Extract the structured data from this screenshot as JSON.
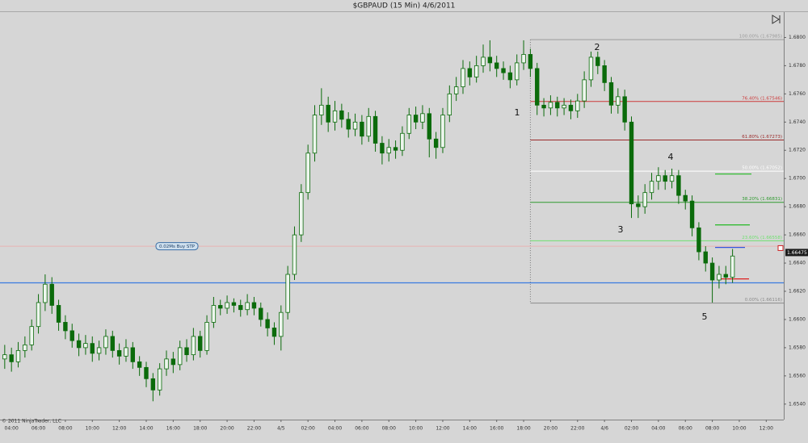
{
  "chart_data": {
    "type": "candlestick",
    "title": "$GBPAUD (15 Min)  4/6/2011",
    "copyright": "© 2011 NinjaTrader, LLC",
    "colors": {
      "up": "#eef6ee",
      "down": "#0b6b0b",
      "outline": "#0b6b0b"
    },
    "x": [
      0,
      1,
      2,
      3,
      4,
      5,
      6,
      7,
      8,
      9,
      10,
      11,
      12,
      13,
      14,
      15,
      16,
      17,
      18,
      19,
      20,
      21,
      22,
      23,
      24,
      25,
      26,
      27,
      28,
      29,
      30,
      31,
      32,
      33,
      34,
      35,
      36,
      37,
      38,
      39,
      40,
      41,
      42,
      43,
      44,
      45,
      46,
      47,
      48,
      49,
      50,
      51,
      52,
      53,
      54,
      55,
      56,
      57,
      58,
      59,
      60,
      61,
      62,
      63,
      64,
      65,
      66,
      67,
      68,
      69,
      70,
      71,
      72,
      73,
      74,
      75,
      76,
      77,
      78,
      79,
      80,
      81,
      82,
      83,
      84,
      85,
      86,
      87,
      88,
      89,
      90,
      91,
      92,
      93,
      94,
      95,
      96,
      97,
      98,
      99,
      100,
      101,
      102,
      103,
      104,
      105,
      106,
      107,
      108
    ],
    "open": [
      1.6572,
      1.6575,
      1.657,
      1.6578,
      1.6582,
      1.6595,
      1.6612,
      1.6625,
      1.661,
      1.6598,
      1.6592,
      1.6585,
      1.658,
      1.6583,
      1.6576,
      1.658,
      1.6588,
      1.6578,
      1.6574,
      1.658,
      1.657,
      1.6566,
      1.6558,
      1.655,
      1.6565,
      1.6572,
      1.6568,
      1.658,
      1.6575,
      1.6588,
      1.6578,
      1.6598,
      1.661,
      1.6608,
      1.6612,
      1.661,
      1.6607,
      1.6612,
      1.6608,
      1.66,
      1.6594,
      1.6588,
      1.6605,
      1.6632,
      1.666,
      1.669,
      1.6718,
      1.6745,
      1.6752,
      1.674,
      1.6748,
      1.6742,
      1.6735,
      1.674,
      1.673,
      1.6744,
      1.6725,
      1.6718,
      1.6722,
      1.672,
      1.6732,
      1.6745,
      1.674,
      1.6746,
      1.6728,
      1.6722,
      1.6745,
      1.676,
      1.6765,
      1.6778,
      1.6772,
      1.678,
      1.6786,
      1.6782,
      1.6778,
      1.6775,
      1.677,
      1.6782,
      1.6788,
      1.6778,
      1.6752,
      1.675,
      1.6754,
      1.675,
      1.6752,
      1.6748,
      1.6755,
      1.677,
      1.6786,
      1.678,
      1.6768,
      1.6752,
      1.6758,
      1.674,
      1.6682,
      1.668,
      1.669,
      1.6698,
      1.6702,
      1.6698,
      1.6702,
      1.6688,
      1.6684,
      1.6665,
      1.6648,
      1.664,
      1.6628,
      1.6632,
      1.663
    ],
    "high": [
      1.6582,
      1.658,
      1.6584,
      1.6588,
      1.66,
      1.6618,
      1.6632,
      1.663,
      1.6614,
      1.6603,
      1.6597,
      1.659,
      1.6589,
      1.6588,
      1.6585,
      1.6593,
      1.6592,
      1.6583,
      1.6586,
      1.6584,
      1.6574,
      1.657,
      1.6562,
      1.6569,
      1.6578,
      1.6577,
      1.6585,
      1.6586,
      1.6594,
      1.6592,
      1.6603,
      1.6616,
      1.6614,
      1.6617,
      1.6615,
      1.6614,
      1.6618,
      1.6616,
      1.6612,
      1.6605,
      1.6598,
      1.661,
      1.6638,
      1.6666,
      1.6696,
      1.6724,
      1.6752,
      1.6764,
      1.6758,
      1.6755,
      1.6753,
      1.6747,
      1.6746,
      1.6745,
      1.675,
      1.6748,
      1.673,
      1.6728,
      1.6727,
      1.6737,
      1.675,
      1.6751,
      1.6752,
      1.675,
      1.6733,
      1.675,
      1.6766,
      1.6772,
      1.6784,
      1.6783,
      1.6787,
      1.6795,
      1.6798,
      1.6787,
      1.6783,
      1.678,
      1.6788,
      1.6798,
      1.6792,
      1.6782,
      1.6757,
      1.6759,
      1.6758,
      1.6757,
      1.6756,
      1.676,
      1.6776,
      1.679,
      1.679,
      1.6784,
      1.6772,
      1.6764,
      1.6763,
      1.6744,
      1.6688,
      1.6696,
      1.6704,
      1.6708,
      1.6706,
      1.6707,
      1.6706,
      1.6692,
      1.6688,
      1.6669,
      1.6652,
      1.6644,
      1.6638,
      1.6638,
      1.665
    ],
    "low": [
      1.6565,
      1.6563,
      1.6566,
      1.6573,
      1.6578,
      1.659,
      1.6606,
      1.6604,
      1.6592,
      1.6586,
      1.658,
      1.6574,
      1.6575,
      1.657,
      1.6571,
      1.6575,
      1.6573,
      1.6568,
      1.657,
      1.6565,
      1.656,
      1.6552,
      1.6542,
      1.6546,
      1.656,
      1.6562,
      1.6564,
      1.657,
      1.6571,
      1.6573,
      1.6575,
      1.6594,
      1.6603,
      1.6604,
      1.6605,
      1.6602,
      1.6603,
      1.6603,
      1.6595,
      1.6588,
      1.6582,
      1.6578,
      1.66,
      1.6628,
      1.6655,
      1.6685,
      1.6712,
      1.6738,
      1.6733,
      1.6734,
      1.6736,
      1.6729,
      1.673,
      1.6724,
      1.6726,
      1.6719,
      1.671,
      1.6712,
      1.6714,
      1.6716,
      1.6728,
      1.6735,
      1.6735,
      1.6715,
      1.6714,
      1.6718,
      1.674,
      1.6755,
      1.676,
      1.6766,
      1.6768,
      1.6775,
      1.6776,
      1.6772,
      1.677,
      1.6764,
      1.6766,
      1.6777,
      1.6772,
      1.6745,
      1.6744,
      1.6745,
      1.6744,
      1.6745,
      1.6742,
      1.6743,
      1.675,
      1.6765,
      1.6774,
      1.6762,
      1.6746,
      1.6746,
      1.6734,
      1.6672,
      1.6672,
      1.6675,
      1.6685,
      1.6692,
      1.6692,
      1.6693,
      1.6682,
      1.6678,
      1.6659,
      1.6642,
      1.6634,
      1.6612,
      1.6622,
      1.6625,
      1.6626
    ],
    "close": [
      1.6575,
      1.657,
      1.6578,
      1.6582,
      1.6595,
      1.6612,
      1.6625,
      1.661,
      1.6598,
      1.6592,
      1.6585,
      1.658,
      1.6583,
      1.6576,
      1.658,
      1.6588,
      1.6578,
      1.6574,
      1.658,
      1.657,
      1.6566,
      1.6558,
      1.655,
      1.6565,
      1.6572,
      1.6568,
      1.658,
      1.6575,
      1.6588,
      1.6578,
      1.6598,
      1.661,
      1.6608,
      1.6612,
      1.661,
      1.6607,
      1.6612,
      1.6608,
      1.66,
      1.6594,
      1.6588,
      1.6605,
      1.6632,
      1.666,
      1.669,
      1.6718,
      1.6745,
      1.6752,
      1.674,
      1.6748,
      1.6742,
      1.6735,
      1.674,
      1.673,
      1.6744,
      1.6725,
      1.6718,
      1.6722,
      1.672,
      1.6732,
      1.6745,
      1.674,
      1.6746,
      1.6728,
      1.6722,
      1.6745,
      1.676,
      1.6765,
      1.6778,
      1.6772,
      1.678,
      1.6786,
      1.6782,
      1.6778,
      1.6775,
      1.677,
      1.6782,
      1.6788,
      1.6778,
      1.6752,
      1.675,
      1.6754,
      1.675,
      1.6752,
      1.6748,
      1.6755,
      1.677,
      1.6786,
      1.678,
      1.6768,
      1.6752,
      1.6758,
      1.674,
      1.6682,
      1.668,
      1.669,
      1.6698,
      1.6702,
      1.6698,
      1.6702,
      1.6688,
      1.6684,
      1.6665,
      1.6648,
      1.664,
      1.6628,
      1.6632,
      1.663,
      1.6645
    ],
    "xlim": [
      -0.7,
      115.6
    ],
    "xticks": [
      {
        "value": 1,
        "label": "04:00"
      },
      {
        "value": 5,
        "label": "06:00"
      },
      {
        "value": 9,
        "label": "08:00"
      },
      {
        "value": 13,
        "label": "10:00"
      },
      {
        "value": 17,
        "label": "12:00"
      },
      {
        "value": 21,
        "label": "14:00"
      },
      {
        "value": 25,
        "label": "16:00"
      },
      {
        "value": 29,
        "label": "18:00"
      },
      {
        "value": 33,
        "label": "20:00"
      },
      {
        "value": 37,
        "label": "22:00"
      },
      {
        "value": 41,
        "label": "4/5"
      },
      {
        "value": 45,
        "label": "02:00"
      },
      {
        "value": 49,
        "label": "04:00"
      },
      {
        "value": 53,
        "label": "06:00"
      },
      {
        "value": 57,
        "label": "08:00"
      },
      {
        "value": 61,
        "label": "10:00"
      },
      {
        "value": 65,
        "label": "12:00"
      },
      {
        "value": 69,
        "label": "14:00"
      },
      {
        "value": 73,
        "label": "16:00"
      },
      {
        "value": 77,
        "label": "18:00"
      },
      {
        "value": 81,
        "label": "20:00"
      },
      {
        "value": 85,
        "label": "22:00"
      },
      {
        "value": 89,
        "label": "4/6"
      },
      {
        "value": 93,
        "label": "02:00"
      },
      {
        "value": 97,
        "label": "04:00"
      },
      {
        "value": 101,
        "label": "06:00"
      },
      {
        "value": 105,
        "label": "08:00"
      },
      {
        "value": 109,
        "label": "10:00"
      },
      {
        "value": 113,
        "label": "12:00"
      }
    ],
    "ylim": [
      1.6529,
      1.6818
    ],
    "yticks": [
      {
        "value": 1.654,
        "label": "1.6540"
      },
      {
        "value": 1.656,
        "label": "1.6560"
      },
      {
        "value": 1.658,
        "label": "1.6580"
      },
      {
        "value": 1.66,
        "label": "1.6600"
      },
      {
        "value": 1.662,
        "label": "1.6620"
      },
      {
        "value": 1.664,
        "label": "1.6640"
      },
      {
        "value": 1.666,
        "label": "1.6660"
      },
      {
        "value": 1.668,
        "label": "1.6680"
      },
      {
        "value": 1.67,
        "label": "1.6700"
      },
      {
        "value": 1.672,
        "label": "1.6720"
      },
      {
        "value": 1.674,
        "label": "1.6740"
      },
      {
        "value": 1.676,
        "label": "1.6760"
      },
      {
        "value": 1.678,
        "label": "1.6780"
      },
      {
        "value": 1.68,
        "label": "1.6800"
      }
    ],
    "grid": false,
    "horizontal_line": {
      "value": 1.6626,
      "color": "#3a7be0"
    },
    "order_line": {
      "value": 1.6652,
      "label": "0.02Ms  Buy STP",
      "color": "#e8b4b4"
    },
    "order_markers": [
      {
        "value": 1.67032,
        "color": "#33bb33"
      },
      {
        "value": 1.66671,
        "color": "#33bb33"
      },
      {
        "value": 1.66511,
        "color": "#3355dd"
      },
      {
        "value": 1.66288,
        "color": "#dd2222"
      }
    ],
    "last_price": 1.66475,
    "fibonacci": {
      "start_x": 78,
      "levels": [
        {
          "value": 1.67985,
          "label": "100.00% (1.67985)",
          "color": "#9a9a9a"
        },
        {
          "value": 1.67546,
          "label": "76.40% (1.67546)",
          "color": "#cc3a3a"
        },
        {
          "value": 1.67273,
          "label": "61.80% (1.67273)",
          "color": "#9a2a2a"
        },
        {
          "value": 1.67052,
          "label": "50.00% (1.67052)",
          "color": "#ffffff"
        },
        {
          "value": 1.66831,
          "label": "38.20% (1.66831)",
          "color": "#2f9a2f"
        },
        {
          "value": 1.66558,
          "label": "23.60% (1.66558)",
          "color": "#6fe06f"
        },
        {
          "value": 1.66116,
          "label": "0.00% (1.66116)",
          "color": "#8a8a8a"
        }
      ]
    },
    "annotations": [
      "1",
      "2",
      "3",
      "4",
      "5"
    ]
  }
}
